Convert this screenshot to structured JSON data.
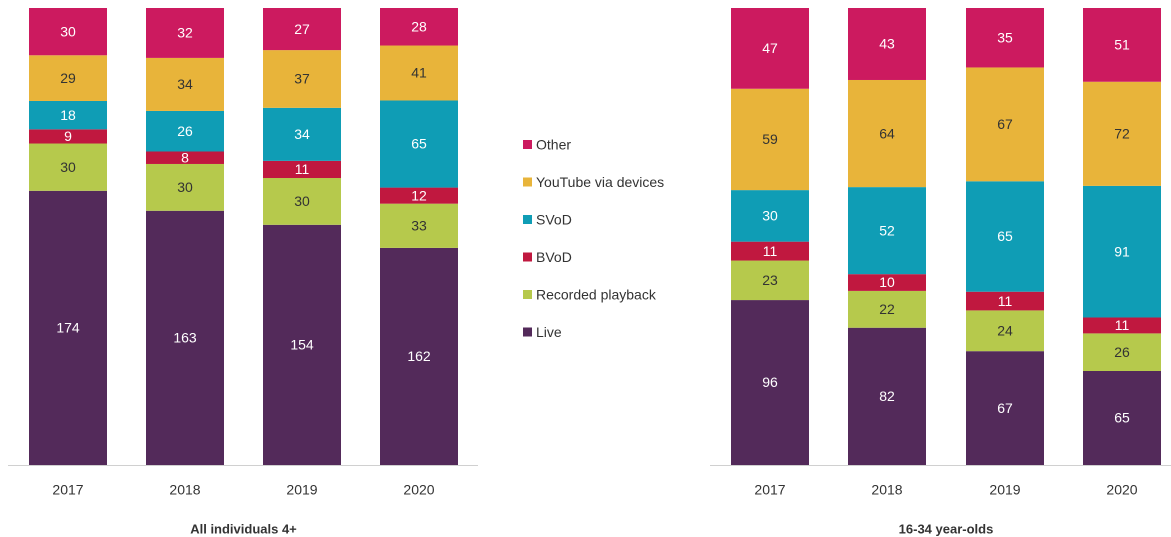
{
  "chart_data": [
    {
      "type": "bar",
      "stacking": "percent",
      "xlabel": "All individuals 4+",
      "categories": [
        "2017",
        "2018",
        "2019",
        "2020"
      ],
      "series": [
        {
          "name": "Live",
          "color": "#532a5a",
          "values": [
            174,
            163,
            154,
            162
          ]
        },
        {
          "name": "Recorded playback",
          "color": "#b6c94c",
          "values": [
            30,
            30,
            30,
            33
          ]
        },
        {
          "name": "BVoD",
          "color": "#c0183f",
          "values": [
            9,
            8,
            11,
            12
          ]
        },
        {
          "name": "SVoD",
          "color": "#0f9db5",
          "values": [
            18,
            26,
            34,
            65
          ]
        },
        {
          "name": "YouTube via devices",
          "color": "#e8b43a",
          "values": [
            29,
            34,
            37,
            41
          ]
        },
        {
          "name": "Other",
          "color": "#cc1a5f",
          "values": [
            30,
            32,
            27,
            28
          ]
        }
      ]
    },
    {
      "type": "bar",
      "stacking": "percent",
      "xlabel": "16-34 year-olds",
      "categories": [
        "2017",
        "2018",
        "2019",
        "2020"
      ],
      "series": [
        {
          "name": "Live",
          "color": "#532a5a",
          "values": [
            96,
            82,
            67,
            65
          ]
        },
        {
          "name": "Recorded playback",
          "color": "#b6c94c",
          "values": [
            23,
            22,
            24,
            26
          ]
        },
        {
          "name": "BVoD",
          "color": "#c0183f",
          "values": [
            11,
            10,
            11,
            11
          ]
        },
        {
          "name": "SVoD",
          "color": "#0f9db5",
          "values": [
            30,
            52,
            65,
            91
          ]
        },
        {
          "name": "YouTube via devices",
          "color": "#e8b43a",
          "values": [
            59,
            64,
            67,
            72
          ]
        },
        {
          "name": "Other",
          "color": "#cc1a5f",
          "values": [
            47,
            43,
            35,
            51
          ]
        }
      ]
    }
  ]
}
